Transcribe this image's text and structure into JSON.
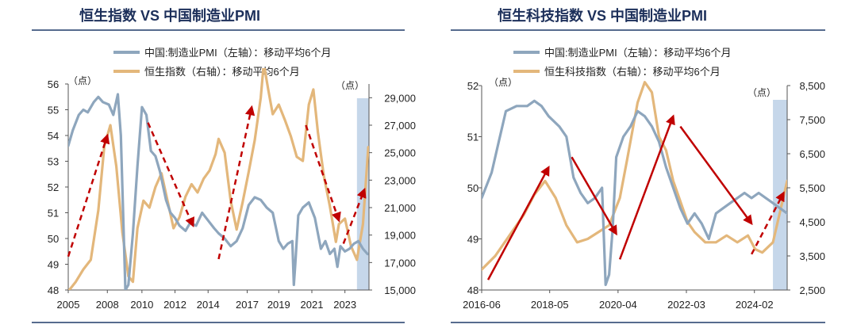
{
  "colors": {
    "pmi": "#8ea6bd",
    "index": "#e3b77b",
    "arrow": "#c00000",
    "shade": "#c6d7ea",
    "title": "#1c2f5a",
    "rule": "#1f3a68"
  },
  "chart_data": [
    {
      "type": "line",
      "title": "恒生指数 VS 中国制造业PMI",
      "unit_left": "（点）",
      "unit_right": "（点）",
      "legend": [
        "中国:制造业PMI（左轴）：移动平均6个月",
        "恒生指数（右轴）：移动平均6个月"
      ],
      "x_range": [
        2005,
        2025
      ],
      "x_ticks": [
        "2005",
        "2008",
        "2010",
        "2012",
        "2014",
        "2017",
        "2019",
        "2021",
        "2023"
      ],
      "x_tick_values": [
        2005,
        2007.6,
        2009.9,
        2012.1,
        2014.3,
        2016.9,
        2019.0,
        2021.2,
        2023.4
      ],
      "y_left": {
        "range": [
          48,
          56
        ],
        "ticks": [
          "48",
          "49",
          "50",
          "51",
          "52",
          "53",
          "54",
          "55",
          "56"
        ]
      },
      "y_right": {
        "range": [
          15000,
          30000
        ],
        "ticks": [
          "15,000",
          "17,000",
          "19,000",
          "21,000",
          "23,000",
          "25,000",
          "27,000",
          "29,000"
        ]
      },
      "shade_from": 2024.2,
      "series": [
        {
          "name": "中国:制造业PMI（左轴）：移动平均6个月",
          "axis": "left",
          "x": [
            2005,
            2005.3,
            2005.7,
            2006.0,
            2006.3,
            2006.7,
            2007.0,
            2007.3,
            2007.7,
            2008.0,
            2008.3,
            2008.5,
            2008.7,
            2008.8,
            2009.0,
            2009.3,
            2009.6,
            2009.9,
            2010.2,
            2010.5,
            2010.8,
            2011.1,
            2011.5,
            2011.8,
            2012.1,
            2012.4,
            2012.8,
            2013.1,
            2013.5,
            2013.9,
            2014.3,
            2014.7,
            2015.0,
            2015.4,
            2015.8,
            2016.2,
            2016.6,
            2017.0,
            2017.4,
            2017.8,
            2018.2,
            2018.6,
            2019.0,
            2019.3,
            2019.6,
            2019.9,
            2020.0,
            2020.1,
            2020.3,
            2020.6,
            2021.0,
            2021.4,
            2021.8,
            2022.1,
            2022.4,
            2022.7,
            2022.9,
            2023.1,
            2023.4,
            2023.7,
            2024.0,
            2024.3,
            2024.6,
            2024.9
          ],
          "values": [
            53.6,
            54.2,
            54.8,
            55.0,
            54.9,
            55.3,
            55.5,
            55.3,
            55.2,
            54.8,
            55.6,
            54.0,
            50.0,
            48.0,
            48.2,
            50.2,
            52.8,
            55.1,
            54.8,
            53.4,
            53.2,
            52.6,
            51.5,
            51.0,
            50.8,
            50.5,
            50.3,
            50.6,
            50.5,
            51.0,
            50.7,
            50.4,
            50.2,
            50.0,
            49.7,
            49.9,
            50.4,
            51.3,
            51.6,
            51.5,
            51.2,
            51.0,
            49.9,
            49.6,
            49.8,
            49.9,
            48.2,
            49.0,
            50.9,
            51.2,
            51.4,
            50.8,
            49.6,
            49.9,
            49.4,
            49.6,
            48.9,
            49.7,
            49.5,
            49.6,
            49.8,
            49.9,
            49.6,
            49.4
          ]
        },
        {
          "name": "恒生指数（右轴）：移动平均6个月",
          "axis": "right",
          "x": [
            2005,
            2005.5,
            2006.0,
            2006.5,
            2007.0,
            2007.4,
            2007.8,
            2008.2,
            2008.6,
            2009.0,
            2009.3,
            2009.6,
            2010.0,
            2010.4,
            2010.8,
            2011.2,
            2011.6,
            2012.0,
            2012.4,
            2012.8,
            2013.2,
            2013.6,
            2014.0,
            2014.4,
            2014.8,
            2015.0,
            2015.4,
            2015.8,
            2016.2,
            2016.6,
            2017.0,
            2017.4,
            2017.8,
            2018.0,
            2018.3,
            2018.6,
            2019.0,
            2019.4,
            2019.8,
            2020.2,
            2020.6,
            2021.0,
            2021.3,
            2021.6,
            2022.0,
            2022.4,
            2022.8,
            2023.0,
            2023.4,
            2023.8,
            2024.2,
            2024.6,
            2024.95
          ],
          "values": [
            14900,
            15600,
            16500,
            17200,
            20800,
            25500,
            27000,
            24000,
            19200,
            16000,
            15600,
            19500,
            21500,
            21000,
            22500,
            23500,
            21500,
            19500,
            20300,
            21800,
            22700,
            22100,
            23100,
            23700,
            24900,
            26000,
            25000,
            21500,
            19400,
            21400,
            23600,
            25900,
            29000,
            31500,
            29600,
            27800,
            28500,
            27400,
            26200,
            24700,
            24400,
            28500,
            29600,
            26500,
            23300,
            21100,
            18500,
            19800,
            20200,
            18200,
            17200,
            19800,
            25400
          ]
        }
      ],
      "annotations": [
        {
          "type": "arrow",
          "style": "dashed",
          "from": [
            2005.0,
            49.3
          ],
          "to": [
            2007.6,
            54.0
          ]
        },
        {
          "type": "arrow",
          "style": "dashed",
          "from": [
            2010.3,
            54.5
          ],
          "to": [
            2013.3,
            50.5
          ]
        },
        {
          "type": "arrow",
          "style": "dashed",
          "from": [
            2015.0,
            49.2
          ],
          "to": [
            2017.2,
            55.1
          ]
        },
        {
          "type": "arrow",
          "style": "dashed",
          "from": [
            2020.8,
            54.4
          ],
          "to": [
            2023.0,
            50.7
          ]
        },
        {
          "type": "arrow",
          "style": "dashed",
          "from": [
            2023.3,
            49.8
          ],
          "to": [
            2024.7,
            51.9
          ]
        }
      ]
    },
    {
      "type": "line",
      "title": "恒生科技指数 VS 中国制造业PMI",
      "unit_left": "（点）",
      "unit_right": "（点）",
      "legend": [
        "中国:制造业PMI（左轴）：移动平均6个月",
        "恒生科技指数（右轴）：移动平均6个月"
      ],
      "x_range": [
        2016.42,
        2025.0
      ],
      "x_ticks": [
        "2016-06",
        "2018-05",
        "2020-04",
        "2022-03",
        "2024-02"
      ],
      "x_tick_values": [
        2016.42,
        2018.33,
        2020.25,
        2022.17,
        2024.08
      ],
      "y_left": {
        "range": [
          48,
          52
        ],
        "ticks": [
          "48",
          "49",
          "50",
          "51",
          "52"
        ]
      },
      "y_right": {
        "range": [
          2500,
          8500
        ],
        "ticks": [
          "2,500",
          "3,500",
          "4,500",
          "5,500",
          "6,500",
          "7,500",
          "8,500"
        ]
      },
      "shade_from": 2024.6,
      "series": [
        {
          "name": "中国:制造业PMI（左轴）：移动平均6个月",
          "axis": "left",
          "x": [
            2016.42,
            2016.7,
            2016.9,
            2017.1,
            2017.4,
            2017.7,
            2017.9,
            2018.1,
            2018.3,
            2018.6,
            2018.8,
            2019.0,
            2019.2,
            2019.4,
            2019.6,
            2019.8,
            2019.9,
            2020.0,
            2020.1,
            2020.2,
            2020.4,
            2020.6,
            2020.8,
            2021.0,
            2021.2,
            2021.4,
            2021.6,
            2021.8,
            2022.0,
            2022.2,
            2022.4,
            2022.6,
            2022.8,
            2023.0,
            2023.2,
            2023.4,
            2023.6,
            2023.8,
            2024.0,
            2024.2,
            2024.4,
            2024.6,
            2024.8,
            2025.0
          ],
          "values": [
            49.8,
            50.3,
            50.9,
            51.5,
            51.6,
            51.6,
            51.7,
            51.6,
            51.4,
            51.2,
            51.0,
            50.2,
            49.9,
            49.7,
            49.8,
            50.0,
            48.1,
            48.3,
            49.2,
            50.6,
            51.0,
            51.2,
            51.5,
            51.4,
            51.2,
            50.9,
            50.4,
            50.0,
            49.6,
            49.3,
            49.5,
            49.3,
            49.0,
            49.5,
            49.6,
            49.7,
            49.8,
            49.9,
            49.8,
            49.9,
            49.8,
            49.7,
            49.6,
            49.5
          ]
        },
        {
          "name": "恒生科技指数（右轴）：移动平均6个月",
          "axis": "right",
          "x": [
            2016.42,
            2016.8,
            2017.2,
            2017.6,
            2017.9,
            2018.2,
            2018.5,
            2018.8,
            2019.1,
            2019.4,
            2019.7,
            2020.0,
            2020.3,
            2020.5,
            2020.8,
            2021.0,
            2021.2,
            2021.4,
            2021.6,
            2021.8,
            2022.0,
            2022.2,
            2022.4,
            2022.7,
            2023.0,
            2023.3,
            2023.6,
            2023.9,
            2024.1,
            2024.3,
            2024.6,
            2025.0
          ],
          "values": [
            3100,
            3500,
            4100,
            4700,
            5300,
            5700,
            5200,
            4400,
            3900,
            4000,
            4200,
            4400,
            5200,
            6300,
            8000,
            8600,
            8300,
            7000,
            6600,
            5700,
            5100,
            4500,
            4200,
            3900,
            3900,
            4100,
            3900,
            4100,
            3700,
            3600,
            3900,
            5700
          ]
        }
      ],
      "annotations": [
        {
          "type": "arrow",
          "style": "solid",
          "from": [
            2016.6,
            48.2
          ],
          "to": [
            2018.3,
            50.4
          ]
        },
        {
          "type": "arrow",
          "style": "solid",
          "from": [
            2018.95,
            50.6
          ],
          "to": [
            2020.2,
            49.1
          ]
        },
        {
          "type": "arrow",
          "style": "solid",
          "from": [
            2020.3,
            48.6
          ],
          "to": [
            2021.8,
            51.4
          ]
        },
        {
          "type": "arrow",
          "style": "solid",
          "from": [
            2022.0,
            51.2
          ],
          "to": [
            2024.0,
            49.3
          ]
        },
        {
          "type": "arrow",
          "style": "dashed",
          "from": [
            2024.0,
            48.7
          ],
          "to": [
            2024.9,
            49.9
          ]
        }
      ]
    }
  ]
}
